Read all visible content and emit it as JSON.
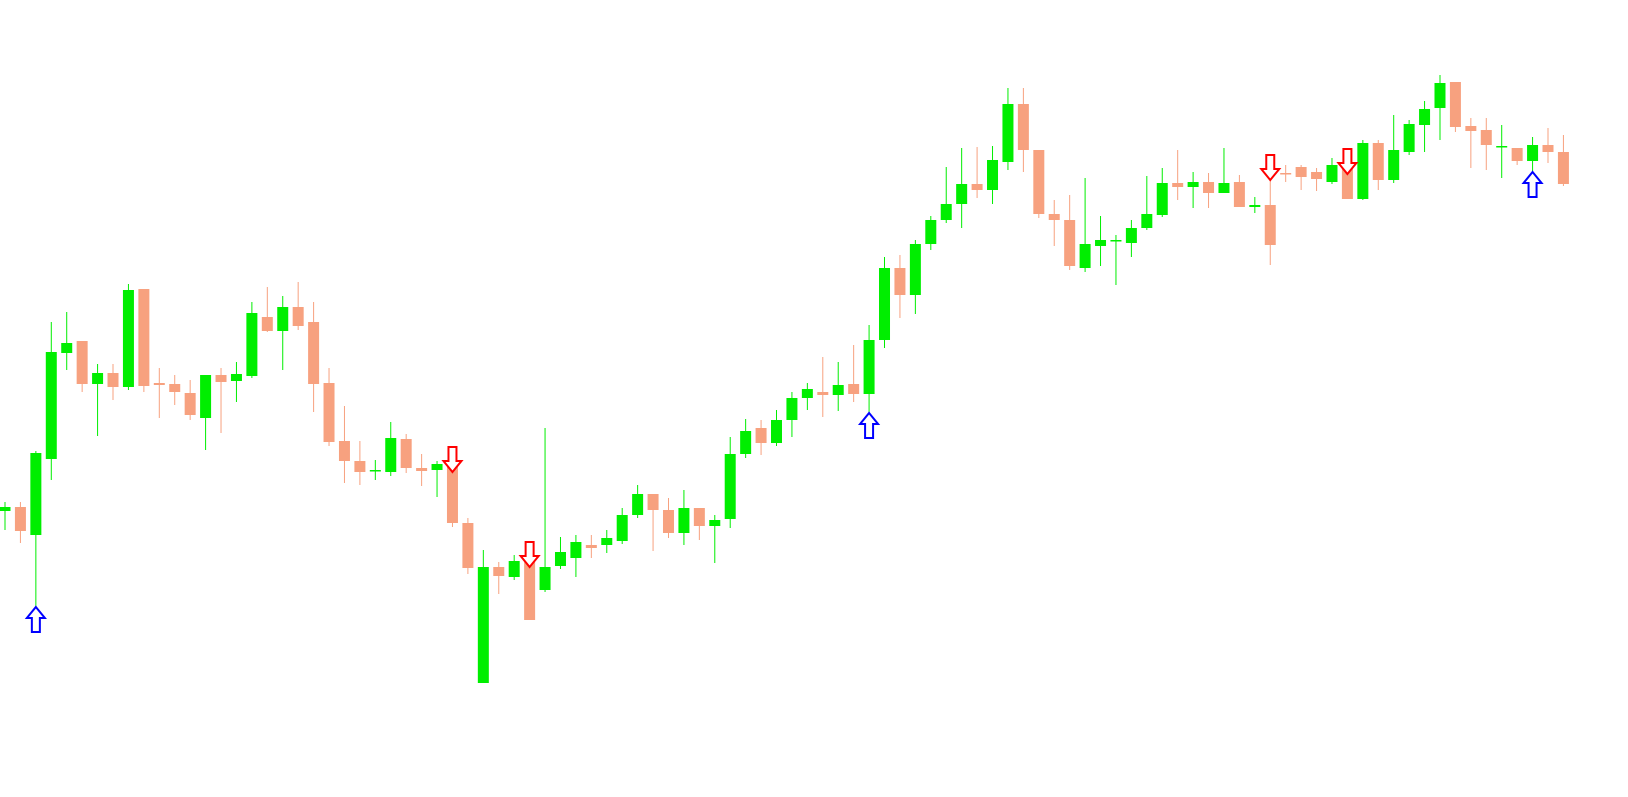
{
  "chart_data": {
    "type": "candlestick",
    "ylim": [
      3,
      800
    ],
    "up_color": "#00ee00",
    "down_color": "#f7a17f",
    "buy_color": "#0000ff",
    "sell_color": "#ff0000",
    "open": [
      289,
      293,
      265,
      341,
      447,
      459,
      416,
      427,
      413,
      511,
      417,
      416,
      407,
      382,
      425,
      419,
      424,
      483,
      469,
      493,
      478,
      417,
      359,
      339,
      329,
      328,
      361,
      332,
      330,
      336,
      277,
      117,
      233,
      223,
      238,
      210,
      234,
      242,
      255,
      255,
      259,
      285,
      306,
      290,
      267,
      292,
      274,
      281,
      346,
      372,
      357,
      380,
      402,
      408,
      405,
      416,
      406,
      460,
      532,
      505,
      556,
      580,
      596,
      616,
      610,
      638,
      696,
      650,
      586,
      580,
      532,
      554,
      559,
      557,
      572,
      585,
      617,
      613,
      618,
      607,
      618,
      593,
      595,
      627,
      633,
      628,
      618,
      635,
      601,
      657,
      620,
      648,
      675,
      692,
      718,
      674,
      670,
      653,
      652,
      639,
      655,
      648
    ],
    "high": [
      298,
      298,
      349,
      478,
      488,
      459,
      436,
      436,
      516,
      511,
      432,
      425,
      420,
      425,
      432,
      438,
      498,
      513,
      504,
      518,
      498,
      432,
      394,
      359,
      340,
      378,
      366,
      346,
      339,
      340,
      282,
      250,
      238,
      245,
      245,
      372,
      263,
      265,
      265,
      270,
      292,
      315,
      306,
      302,
      310,
      292,
      285,
      363,
      381,
      380,
      390,
      408,
      417,
      443,
      438,
      455,
      475,
      543,
      545,
      560,
      584,
      633,
      652,
      653,
      654,
      712,
      712,
      650,
      600,
      605,
      622,
      584,
      565,
      580,
      624,
      632,
      650,
      628,
      627,
      652,
      625,
      603,
      632,
      635,
      635,
      632,
      642,
      638,
      660,
      660,
      685,
      680,
      699,
      725,
      718,
      682,
      682,
      675,
      652,
      663,
      672,
      665
    ],
    "low": [
      270,
      257,
      193,
      320,
      430,
      408,
      364,
      400,
      410,
      408,
      382,
      395,
      380,
      350,
      367,
      398,
      422,
      468,
      430,
      470,
      388,
      354,
      317,
      315,
      320,
      324,
      327,
      314,
      303,
      273,
      226,
      117,
      206,
      220,
      180,
      208,
      231,
      223,
      242,
      247,
      256,
      282,
      249,
      262,
      255,
      260,
      237,
      272,
      342,
      345,
      354,
      363,
      390,
      383,
      389,
      398,
      387,
      452,
      482,
      486,
      550,
      577,
      572,
      602,
      596,
      630,
      628,
      582,
      554,
      530,
      528,
      534,
      515,
      543,
      570,
      583,
      600,
      592,
      592,
      607,
      593,
      587,
      535,
      618,
      610,
      609,
      616,
      601,
      600,
      610,
      617,
      645,
      648,
      660,
      668,
      632,
      630,
      622,
      635,
      628,
      637,
      614
    ],
    "close": [
      293,
      269,
      347,
      448,
      457,
      416,
      427,
      413,
      510,
      414,
      415,
      408,
      385,
      425,
      418,
      426,
      487,
      469,
      493,
      474,
      416,
      358,
      339,
      328,
      330,
      362,
      332,
      329,
      336,
      277,
      232,
      233,
      224,
      239,
      180,
      233,
      248,
      258,
      252,
      262,
      285,
      306,
      290,
      267,
      292,
      274,
      280,
      346,
      369,
      357,
      380,
      402,
      411,
      405,
      415,
      406,
      460,
      532,
      505,
      556,
      580,
      596,
      616,
      610,
      640,
      696,
      650,
      586,
      580,
      534,
      556,
      560,
      560,
      572,
      586,
      617,
      613,
      618,
      607,
      617,
      593,
      595,
      555,
      626,
      623,
      621,
      635,
      601,
      657,
      620,
      650,
      676,
      691,
      717,
      673,
      669,
      655,
      654,
      639,
      655,
      648,
      616
    ],
    "buy_signals": [
      2,
      56,
      99
    ],
    "sell_signals": [
      29,
      34,
      82,
      87
    ]
  }
}
